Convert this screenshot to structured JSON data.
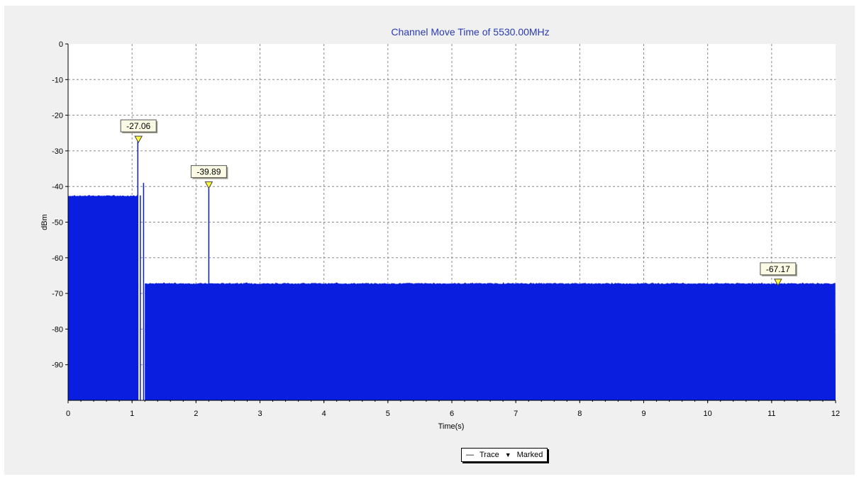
{
  "chart_data": {
    "type": "area",
    "title": "Channel Move Time of 5530.00MHz",
    "xlabel": "Time(s)",
    "ylabel": "dBm",
    "xlim": [
      0,
      12
    ],
    "ylim": [
      -100,
      0
    ],
    "xticks": [
      "0",
      "1",
      "2",
      "3",
      "4",
      "5",
      "6",
      "7",
      "8",
      "9",
      "10",
      "11",
      "12"
    ],
    "yticks": [
      "0",
      "-10",
      "-20",
      "-30",
      "-40",
      "-50",
      "-60",
      "-70",
      "-80",
      "-90"
    ],
    "grid": true,
    "series": [
      {
        "name": "Trace",
        "color": "#0a1ee0",
        "segments": [
          {
            "x_start": 0.0,
            "x_end": 1.1,
            "level": -42.6
          },
          {
            "x_start": 1.2,
            "x_end": 12.0,
            "level": -67.2
          }
        ],
        "spikes": [
          {
            "x": 1.09,
            "y": -27.06
          },
          {
            "x": 1.13,
            "y": -42.5
          },
          {
            "x": 1.18,
            "y": -39.0
          },
          {
            "x": 2.2,
            "y": -39.89
          }
        ]
      }
    ],
    "markers": [
      {
        "x": 1.1,
        "y": -27.06,
        "label": "-27.06"
      },
      {
        "x": 2.2,
        "y": -39.89,
        "label": "-39.89"
      },
      {
        "x": 11.1,
        "y": -67.17,
        "label": "-67.17"
      }
    ],
    "legend": {
      "placement": "bottom-center",
      "entries": [
        {
          "symbol": "—",
          "label": "Trace"
        },
        {
          "symbol": "▼",
          "label": "Marked"
        }
      ]
    }
  }
}
